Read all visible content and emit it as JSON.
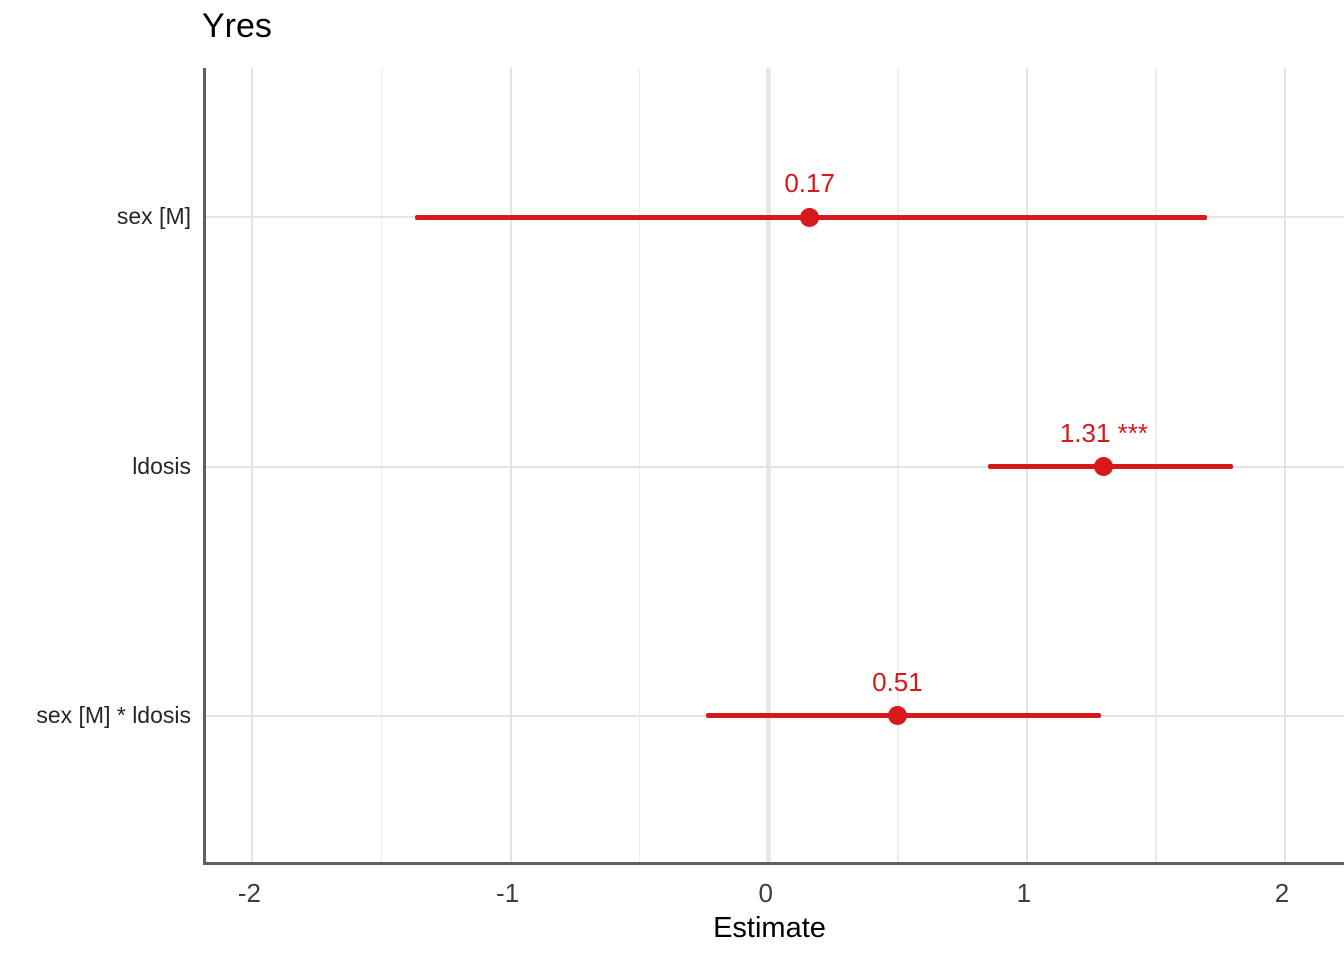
{
  "chart_data": {
    "type": "forest-dot-whisker",
    "title": "Yres",
    "xlabel": "Estimate",
    "x_ticks": [
      -2,
      -1,
      0,
      1,
      2
    ],
    "x_tick_labels": [
      "-2",
      "-1",
      "0",
      "1",
      "2"
    ],
    "x_minor_ticks": [
      -1.5,
      -0.5,
      0.5,
      1.5
    ],
    "xlim": [
      -2.18,
      2.24
    ],
    "zero_line_x": 0,
    "grid": "on",
    "legend": "none",
    "accent_color": "#d7191c",
    "rows": [
      {
        "term": "sex [M]",
        "estimate": 0.17,
        "ci_low": -1.36,
        "ci_high": 1.71,
        "label": "0.17"
      },
      {
        "term": "ldosis",
        "estimate": 1.31,
        "ci_low": 0.86,
        "ci_high": 1.81,
        "label": "1.31 ***"
      },
      {
        "term": "sex [M] * ldosis",
        "estimate": 0.51,
        "ci_low": -0.23,
        "ci_high": 1.3,
        "label": "0.51"
      }
    ]
  },
  "style": {
    "grid_major_color": "#e3e3e3",
    "grid_minor_color": "#ededed",
    "zero_line_color": "#e6e6e6",
    "axis_line_color": "#5f5f5f"
  }
}
